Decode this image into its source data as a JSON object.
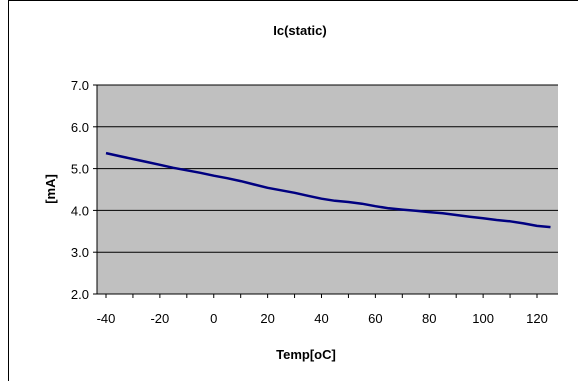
{
  "chart_data": {
    "type": "line",
    "title": "Ic(static)",
    "xlabel": "Temp[oC]",
    "ylabel": "[mA]",
    "xlim": [
      -40,
      125
    ],
    "ylim": [
      2.0,
      7.0
    ],
    "xticks": [
      "-40",
      "-20",
      "0",
      "20",
      "40",
      "60",
      "80",
      "100",
      "120"
    ],
    "yticks": [
      "2.0",
      "3.0",
      "4.0",
      "5.0",
      "6.0",
      "7.0"
    ],
    "grid": "horizontal",
    "legend": "none",
    "series": [
      {
        "color": "#000080",
        "x": [
          -40,
          -35,
          -30,
          -25,
          -20,
          -15,
          -10,
          -5,
          0,
          5,
          10,
          15,
          20,
          25,
          30,
          35,
          40,
          45,
          50,
          55,
          60,
          65,
          70,
          75,
          80,
          85,
          90,
          95,
          100,
          105,
          110,
          115,
          120,
          125
        ],
        "y": [
          5.37,
          5.3,
          5.23,
          5.16,
          5.09,
          5.02,
          4.96,
          4.9,
          4.83,
          4.77,
          4.7,
          4.62,
          4.54,
          4.48,
          4.42,
          4.35,
          4.28,
          4.23,
          4.2,
          4.16,
          4.1,
          4.05,
          4.02,
          3.99,
          3.96,
          3.93,
          3.89,
          3.85,
          3.81,
          3.77,
          3.74,
          3.69,
          3.63,
          3.6
        ]
      }
    ]
  }
}
